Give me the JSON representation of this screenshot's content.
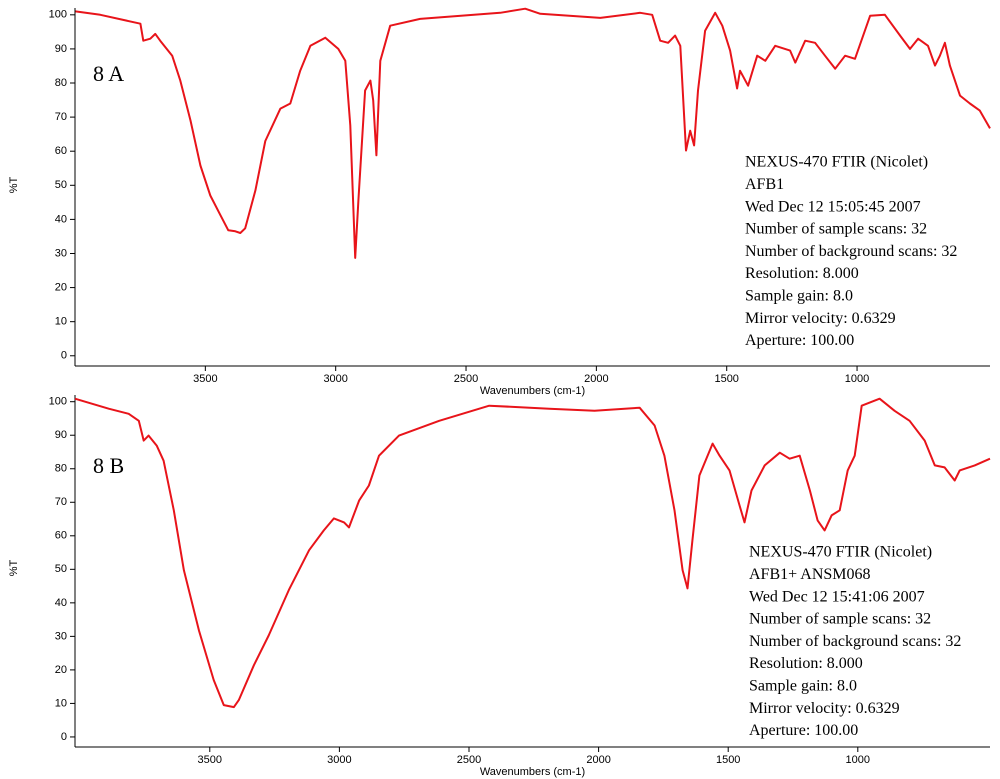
{
  "chart_data": [
    {
      "type": "line",
      "title": "8 A",
      "x_label": "Wavenumbers (cm-1)",
      "y_label": "%T",
      "color": "#e8141a",
      "annotations": [
        "NEXUS-470 FTIR (Nicolet)",
        "AFB1",
        "Wed Dec 12 15:05:45 2007",
        "Number of sample scans: 32",
        "Number of background scans: 32",
        "Resolution: 8.000",
        "Sample gain: 8.0",
        "Mirror velocity: 0.6329",
        "Aperture: 100.00"
      ],
      "xlim": [
        4000,
        490
      ],
      "ylim": [
        -3,
        102
      ],
      "xticks": [
        3500,
        3000,
        2500,
        2000,
        1500,
        1000
      ],
      "yticks": [
        0,
        10,
        20,
        30,
        40,
        50,
        60,
        70,
        80,
        90,
        100
      ],
      "x": [
        3998,
        3903,
        3749,
        3738,
        3711,
        3692,
        3673,
        3627,
        3596,
        3557,
        3519,
        3481,
        3442,
        3412,
        3385,
        3366,
        3347,
        3308,
        3270,
        3212,
        3174,
        3136,
        3097,
        3040,
        2990,
        2963,
        2944,
        2925,
        2913,
        2887,
        2867,
        2856,
        2844,
        2829,
        2791,
        2676,
        2369,
        2273,
        2215,
        1985,
        1832,
        1786,
        1755,
        1725,
        1698,
        1678,
        1656,
        1640,
        1625,
        1610,
        1583,
        1544,
        1517,
        1487,
        1460,
        1449,
        1418,
        1383,
        1352,
        1314,
        1257,
        1237,
        1199,
        1161,
        1123,
        1084,
        1046,
        1008,
        950,
        893,
        835,
        797,
        766,
        728,
        701,
        682,
        663,
        644,
        605,
        567,
        529,
        490
      ],
      "values": [
        101,
        100,
        97.4,
        92.4,
        93,
        94.4,
        92.4,
        88,
        80.7,
        69,
        55.8,
        47,
        41.2,
        36.8,
        36.5,
        36,
        37.4,
        48.5,
        63,
        72.5,
        74,
        83.6,
        90.9,
        93.3,
        90,
        86.5,
        67.5,
        28.7,
        45.6,
        77.8,
        80.7,
        74.9,
        58.8,
        86.5,
        96.8,
        98.8,
        100.6,
        101.8,
        100.3,
        99.1,
        100.6,
        100,
        92.4,
        91.8,
        93.9,
        90.9,
        60.2,
        66,
        61.7,
        77.8,
        95.3,
        100.6,
        96.8,
        89.5,
        78.4,
        83.6,
        79.2,
        88,
        86.5,
        90.9,
        89.5,
        86,
        92.4,
        91.8,
        88,
        84.2,
        88,
        87.1,
        99.7,
        100,
        93.9,
        90,
        93,
        90.9,
        85.1,
        88,
        91.8,
        85.1,
        76.3,
        74,
        71.9,
        66.7
      ]
    },
    {
      "type": "line",
      "title": "8 B",
      "x_label": "Wavenumbers (cm-1)",
      "y_label": "%T",
      "color": "#e8141a",
      "annotations": [
        "NEXUS-470 FTIR (Nicolet)",
        "AFB1+ ANSM068",
        "Wed Dec 12 15:41:06 2007",
        "Number of sample scans: 32",
        "Number of background scans: 32",
        "Resolution: 8.000",
        "Sample gain: 8.0",
        "Mirror velocity: 0.6329",
        "Aperture: 100.00"
      ],
      "xlim": [
        4020,
        490
      ],
      "ylim": [
        -3,
        102
      ],
      "xticks": [
        3500,
        3000,
        2500,
        2000,
        1500,
        1000
      ],
      "yticks": [
        0,
        10,
        20,
        30,
        40,
        50,
        60,
        70,
        80,
        90,
        100
      ],
      "x": [
        4020,
        3890,
        3813,
        3774,
        3755,
        3736,
        3705,
        3678,
        3639,
        3600,
        3542,
        3485,
        3446,
        3407,
        3388,
        3330,
        3272,
        3195,
        3117,
        3060,
        3021,
        2982,
        2963,
        2924,
        2886,
        2847,
        2770,
        2615,
        2422,
        2190,
        2016,
        1842,
        1784,
        1746,
        1707,
        1676,
        1657,
        1638,
        1611,
        1560,
        1533,
        1495,
        1456,
        1437,
        1410,
        1359,
        1301,
        1263,
        1224,
        1185,
        1155,
        1128,
        1101,
        1070,
        1039,
        1012,
        985,
        916,
        858,
        800,
        742,
        703,
        665,
        626,
        607,
        549,
        490
      ],
      "values": [
        100.9,
        97.9,
        96.4,
        94.3,
        88.4,
        89.9,
        86.9,
        82.4,
        67.6,
        49.7,
        31.8,
        17,
        9.5,
        8.9,
        11,
        21.4,
        30.4,
        43.8,
        55.7,
        61.6,
        65.2,
        64,
        62.5,
        70.5,
        75,
        83.9,
        89.9,
        94.3,
        98.8,
        97.9,
        97.3,
        98.2,
        92.9,
        83.9,
        67.6,
        49.7,
        44.3,
        58.6,
        78,
        87.5,
        83.9,
        79.5,
        69,
        64,
        73.5,
        81,
        84.8,
        83,
        83.9,
        73.5,
        64.6,
        61.6,
        66.1,
        67.6,
        79.5,
        83.9,
        98.8,
        100.9,
        97.3,
        94.3,
        88.4,
        81,
        80.4,
        76.5,
        79.5,
        81,
        83
      ]
    }
  ]
}
